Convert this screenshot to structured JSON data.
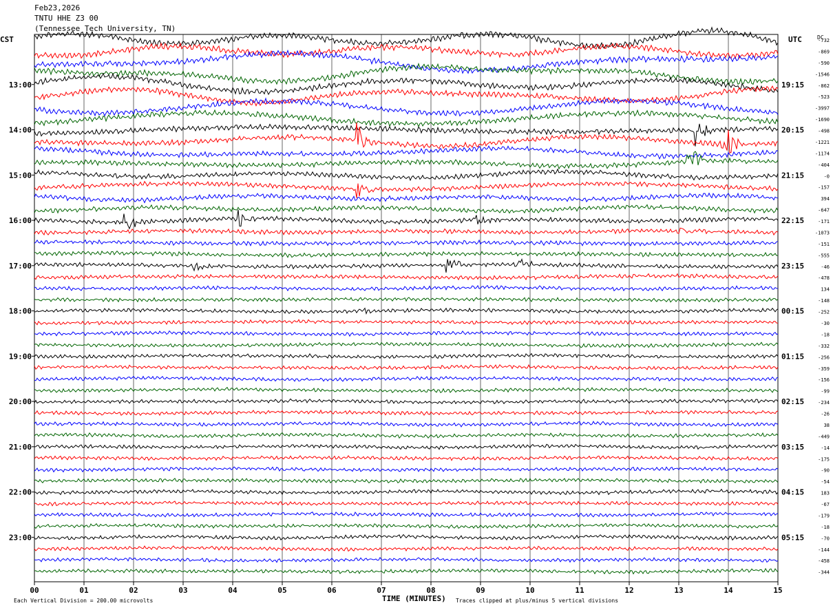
{
  "header": {
    "date": "Feb23,2026",
    "station": "TNTU HHE Z3 00",
    "institution": "(Tennessee Tech University, TN)"
  },
  "chart_data": {
    "type": "line",
    "title": "TNTU HHE Z3 00",
    "left_axis_label": "CST",
    "right_axis_label": "UTC",
    "dc_label": "DC",
    "xlabel": "TIME (MINUTES)",
    "x_ticks": [
      "00",
      "01",
      "02",
      "03",
      "04",
      "05",
      "06",
      "07",
      "08",
      "09",
      "10",
      "11",
      "12",
      "13",
      "14",
      "15"
    ],
    "xlim": [
      0,
      15
    ],
    "left_time_labels": [
      "13:00",
      "14:00",
      "15:00",
      "16:00",
      "17:00",
      "18:00",
      "19:00",
      "20:00",
      "21:00",
      "22:00",
      "23:00"
    ],
    "right_time_labels": [
      "19:15",
      "20:15",
      "21:15",
      "22:15",
      "23:15",
      "00:15",
      "01:15",
      "02:15",
      "03:15",
      "04:15",
      "05:15"
    ],
    "dc_offsets": [
      "-732",
      "-869",
      "-590",
      "-1546",
      "-862",
      "-523",
      "-3997",
      "-1690",
      "-498",
      "-1221",
      "-1174",
      "-404",
      "-0",
      "-157",
      "394",
      "-647",
      "-171",
      "-1073",
      "-151",
      "-555",
      "-46",
      "-478",
      "134",
      "-148",
      "-252",
      "-30",
      "-18",
      "-332",
      "-256",
      "-359",
      "-156",
      "-99",
      "-234",
      "-26",
      "38",
      "-449",
      "-14",
      "-175",
      "-90",
      "-54",
      "183",
      "-67",
      "-179",
      "-18",
      "-70",
      "-144",
      "-458",
      "-344"
    ],
    "trace_colors": [
      "#000000",
      "#ff0000",
      "#0000ff",
      "#006400"
    ],
    "traces_per_hour": 4,
    "trace_count": 48,
    "scale_note": "Each Vertical Division =  200.00 microvolts",
    "clip_note": "Traces clipped at plus/minus 5 vertical divisions",
    "events": [
      {
        "trace": 8,
        "minute": 13.3,
        "amp": 28
      },
      {
        "trace": 9,
        "minute": 13.9,
        "amp": 40
      },
      {
        "trace": 11,
        "minute": 13.2,
        "amp": 30
      },
      {
        "trace": 9,
        "minute": 6.5,
        "amp": 30
      },
      {
        "trace": 13,
        "minute": 6.5,
        "amp": 18
      },
      {
        "trace": 14,
        "minute": 7.1,
        "amp": 10
      },
      {
        "trace": 16,
        "minute": 1.8,
        "amp": 18
      },
      {
        "trace": 16,
        "minute": 4.1,
        "amp": 16
      },
      {
        "trace": 16,
        "minute": 8.9,
        "amp": 10
      },
      {
        "trace": 17,
        "minute": 13.0,
        "amp": 10
      },
      {
        "trace": 20,
        "minute": 3.2,
        "amp": 10
      },
      {
        "trace": 20,
        "minute": 8.3,
        "amp": 16
      },
      {
        "trace": 20,
        "minute": 9.7,
        "amp": 14
      },
      {
        "trace": 24,
        "minute": 6.6,
        "amp": 6
      },
      {
        "trace": 28,
        "minute": 5.5,
        "amp": 4
      }
    ]
  }
}
